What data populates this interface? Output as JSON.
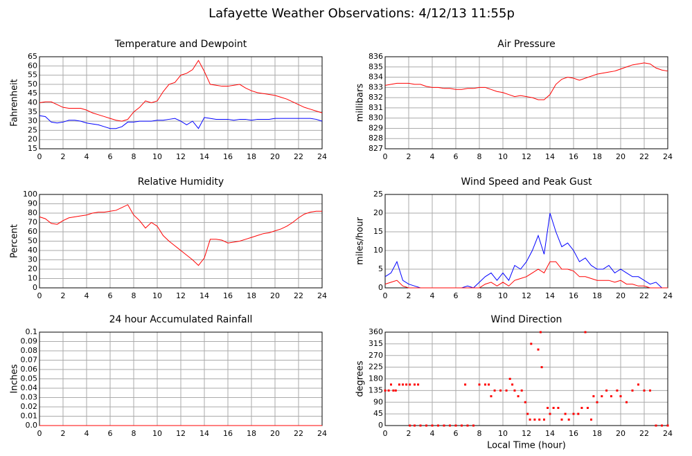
{
  "title": "Lafayette Weather Observations: 4/12/13 11:55p",
  "chart_data": [
    {
      "type": "line",
      "title": "Temperature and Dewpoint",
      "y_label": "Fahrenheit",
      "x": [
        0,
        0.5,
        1,
        1.5,
        2,
        2.5,
        3,
        3.5,
        4,
        4.5,
        5,
        5.5,
        6,
        6.5,
        7,
        7.5,
        8,
        8.5,
        9,
        9.5,
        10,
        10.5,
        11,
        11.5,
        12,
        12.5,
        13,
        13.5,
        14,
        14.5,
        15,
        15.5,
        16,
        16.5,
        17,
        17.5,
        18,
        18.5,
        19,
        19.5,
        20,
        20.5,
        21,
        21.5,
        22,
        22.5,
        23,
        23.5,
        24
      ],
      "series": [
        {
          "color": "#ff0000",
          "values": [
            40,
            40.5,
            40.5,
            39,
            37.5,
            37,
            37,
            37,
            36,
            34.5,
            33.5,
            32.5,
            31.5,
            30.5,
            30,
            31,
            35,
            37.5,
            41,
            40,
            41,
            46,
            50,
            51,
            55,
            56,
            58,
            63,
            57,
            50,
            49.5,
            49,
            49,
            49.5,
            50,
            48,
            46.5,
            45.5,
            45,
            44.5,
            44,
            43,
            42,
            40.5,
            39,
            37.5,
            36.5,
            35.5,
            34.5
          ]
        },
        {
          "color": "#0000ff",
          "values": [
            33,
            32.5,
            29.5,
            29,
            29.5,
            30.5,
            30.5,
            30,
            29,
            28.5,
            28,
            27,
            26,
            26,
            27,
            29.5,
            29.5,
            30,
            30,
            30,
            30.5,
            30.5,
            31,
            31.5,
            30,
            28,
            30,
            26,
            32,
            31.5,
            31,
            31,
            31,
            30.5,
            31,
            31,
            30.5,
            31,
            31,
            31,
            31.5,
            31.5,
            31.5,
            31.5,
            31.5,
            31.5,
            31.5,
            31,
            30
          ]
        }
      ],
      "xlim": [
        0,
        24
      ],
      "xticks": [
        0,
        2,
        4,
        6,
        8,
        10,
        12,
        14,
        16,
        18,
        20,
        22,
        24
      ],
      "ylim": [
        15,
        65
      ],
      "yticks": [
        15,
        20,
        25,
        30,
        35,
        40,
        45,
        50,
        55,
        60,
        65
      ],
      "grid": true
    },
    {
      "type": "line",
      "title": "Air Pressure",
      "y_label": "millibars",
      "x": [
        0,
        0.5,
        1,
        1.5,
        2,
        2.5,
        3,
        3.5,
        4,
        4.5,
        5,
        5.5,
        6,
        6.5,
        7,
        7.5,
        8,
        8.5,
        9,
        9.5,
        10,
        10.5,
        11,
        11.5,
        12,
        12.5,
        13,
        13.5,
        14,
        14.5,
        15,
        15.5,
        16,
        16.5,
        17,
        17.5,
        18,
        18.5,
        19,
        19.5,
        20,
        20.5,
        21,
        21.5,
        22,
        22.5,
        23,
        23.5,
        24
      ],
      "series": [
        {
          "color": "#ff0000",
          "values": [
            833.2,
            833.3,
            833.4,
            833.4,
            833.4,
            833.3,
            833.3,
            833.1,
            833,
            833,
            832.9,
            832.9,
            832.8,
            832.8,
            832.9,
            832.9,
            833,
            833,
            832.8,
            832.6,
            832.5,
            832.3,
            832.1,
            832.2,
            832.1,
            832,
            831.8,
            831.8,
            832.3,
            833.3,
            833.8,
            834,
            833.9,
            833.7,
            833.9,
            834.1,
            834.3,
            834.4,
            834.5,
            834.6,
            834.8,
            835,
            835.2,
            835.3,
            835.4,
            835.3,
            834.9,
            834.7,
            834.6
          ]
        }
      ],
      "xlim": [
        0,
        24
      ],
      "xticks": [
        0,
        2,
        4,
        6,
        8,
        10,
        12,
        14,
        16,
        18,
        20,
        22,
        24
      ],
      "ylim": [
        827,
        836
      ],
      "yticks": [
        827,
        828,
        829,
        830,
        831,
        832,
        833,
        834,
        835,
        836
      ],
      "grid": true
    },
    {
      "type": "line",
      "title": "Relative Humidity",
      "y_label": "Percent",
      "x": [
        0,
        0.5,
        1,
        1.5,
        2,
        2.5,
        3,
        3.5,
        4,
        4.5,
        5,
        5.5,
        6,
        6.5,
        7,
        7.5,
        8,
        8.5,
        9,
        9.5,
        10,
        10.5,
        11,
        11.5,
        12,
        12.5,
        13,
        13.5,
        14,
        14.5,
        15,
        15.5,
        16,
        16.5,
        17,
        17.5,
        18,
        18.5,
        19,
        19.5,
        20,
        20.5,
        21,
        21.5,
        22,
        22.5,
        23,
        23.5,
        24
      ],
      "series": [
        {
          "color": "#ff0000",
          "values": [
            76,
            74,
            69,
            68,
            72,
            75,
            76,
            77,
            78,
            80,
            81,
            81,
            82,
            83,
            86,
            89,
            78,
            72,
            64,
            70,
            66,
            56,
            50,
            45,
            40,
            35,
            30,
            24,
            32,
            52,
            52,
            51,
            48,
            49,
            50,
            52,
            54,
            56,
            58,
            59,
            61,
            63,
            66,
            70,
            75,
            79,
            81,
            82,
            82
          ]
        }
      ],
      "xlim": [
        0,
        24
      ],
      "xticks": [
        0,
        2,
        4,
        6,
        8,
        10,
        12,
        14,
        16,
        18,
        20,
        22,
        24
      ],
      "ylim": [
        0,
        100
      ],
      "yticks": [
        0,
        10,
        20,
        30,
        40,
        50,
        60,
        70,
        80,
        90,
        100
      ],
      "grid": true
    },
    {
      "type": "line",
      "title": "Wind Speed and Peak Gust",
      "y_label": "miles/hour",
      "x": [
        0,
        0.5,
        1,
        1.5,
        2,
        2.5,
        3,
        3.5,
        4,
        4.5,
        5,
        5.5,
        6,
        6.5,
        7,
        7.5,
        8,
        8.5,
        9,
        9.5,
        10,
        10.5,
        11,
        11.5,
        12,
        12.5,
        13,
        13.5,
        14,
        14.5,
        15,
        15.5,
        16,
        16.5,
        17,
        17.5,
        18,
        18.5,
        19,
        19.5,
        20,
        20.5,
        21,
        21.5,
        22,
        22.5,
        23,
        23.5,
        24
      ],
      "series": [
        {
          "color": "#0000ff",
          "values": [
            3,
            4,
            7,
            2,
            1,
            0.5,
            0,
            0,
            0,
            0,
            0,
            0,
            0,
            0,
            0.5,
            0,
            1.5,
            3,
            4,
            2,
            4,
            2,
            6,
            5,
            7,
            10,
            14,
            9,
            20,
            15,
            11,
            12,
            10,
            7,
            8,
            6,
            5,
            5,
            6,
            4,
            5,
            4,
            3,
            3,
            2,
            1,
            1.5,
            0,
            0
          ]
        },
        {
          "color": "#ff0000",
          "values": [
            1,
            1.5,
            2,
            0.5,
            0,
            0,
            0,
            0,
            0,
            0,
            0,
            0,
            0,
            0,
            0,
            0,
            0,
            1,
            1.5,
            0.5,
            1.5,
            0.5,
            2,
            2.5,
            3,
            4,
            5,
            4,
            7,
            7,
            5,
            5,
            4.5,
            3,
            3,
            2.5,
            2,
            2,
            2,
            1.5,
            2,
            1,
            1,
            0.5,
            0.5,
            0,
            0,
            0,
            0
          ]
        }
      ],
      "xlim": [
        0,
        24
      ],
      "xticks": [
        0,
        2,
        4,
        6,
        8,
        10,
        12,
        14,
        16,
        18,
        20,
        22,
        24
      ],
      "ylim": [
        0,
        25
      ],
      "yticks": [
        0,
        5,
        10,
        15,
        20,
        25
      ],
      "grid": true
    },
    {
      "type": "line",
      "title": "24 hour Accumulated Rainfall",
      "y_label": "Inches",
      "x": [
        0,
        24
      ],
      "series": [
        {
          "color": "#ff0000",
          "values": [
            0,
            0
          ]
        }
      ],
      "xlim": [
        0,
        24
      ],
      "xticks": [
        0,
        2,
        4,
        6,
        8,
        10,
        12,
        14,
        16,
        18,
        20,
        22,
        24
      ],
      "ylim": [
        0,
        0.1
      ],
      "yticks": [
        {
          "value": 0,
          "label": "0.0"
        },
        0.01,
        0.02,
        0.03,
        0.04,
        0.05,
        0.06,
        0.07,
        0.08,
        0.09,
        {
          "value": 0.1,
          "label": "0.1"
        }
      ],
      "grid": true
    },
    {
      "type": "scatter",
      "title": "Wind Direction",
      "y_label": "degrees",
      "x_label": "Local Time (hour)",
      "color": "#ff0000",
      "x": [
        0,
        0.3,
        0.5,
        0.7,
        0.9,
        1.2,
        1.5,
        1.8,
        2.1,
        2.1,
        2.5,
        2.5,
        2.8,
        3,
        3.5,
        4,
        4.5,
        5,
        5.5,
        6,
        6.5,
        6.8,
        7,
        7.5,
        8,
        8.5,
        8.8,
        9,
        9.3,
        9.8,
        10.3,
        10.6,
        10.8,
        11,
        11.3,
        11.6,
        11.9,
        12.1,
        12.3,
        12.4,
        12.7,
        13,
        13.1,
        13.2,
        13.3,
        13.5,
        13.8,
        14,
        14.3,
        14.7,
        15,
        15.3,
        15.6,
        16,
        16.4,
        16.7,
        17,
        17.2,
        17.5,
        17.7,
        18,
        18.4,
        18.8,
        19.2,
        19.7,
        20,
        20.5,
        21,
        21.5,
        22,
        22.5,
        23,
        23.5,
        24
      ],
      "values": [
        135,
        135,
        158,
        135,
        135,
        158,
        158,
        158,
        158,
        0,
        158,
        0,
        158,
        0,
        0,
        0,
        0,
        0,
        0,
        0,
        0,
        158,
        0,
        0,
        158,
        158,
        158,
        113,
        135,
        135,
        135,
        180,
        158,
        135,
        113,
        135,
        90,
        45,
        23,
        315,
        23,
        293,
        23,
        360,
        225,
        23,
        68,
        45,
        68,
        68,
        23,
        45,
        23,
        45,
        45,
        68,
        360,
        68,
        23,
        113,
        90,
        113,
        135,
        113,
        135,
        113,
        90,
        135,
        158,
        135,
        135,
        0,
        0,
        0
      ],
      "xlim": [
        0,
        24
      ],
      "xticks": [
        0,
        2,
        4,
        6,
        8,
        10,
        12,
        14,
        16,
        18,
        20,
        22,
        24
      ],
      "ylim": [
        0,
        360
      ],
      "yticks": [
        0,
        45,
        90,
        135,
        180,
        225,
        270,
        315,
        360
      ],
      "grid": true
    }
  ]
}
